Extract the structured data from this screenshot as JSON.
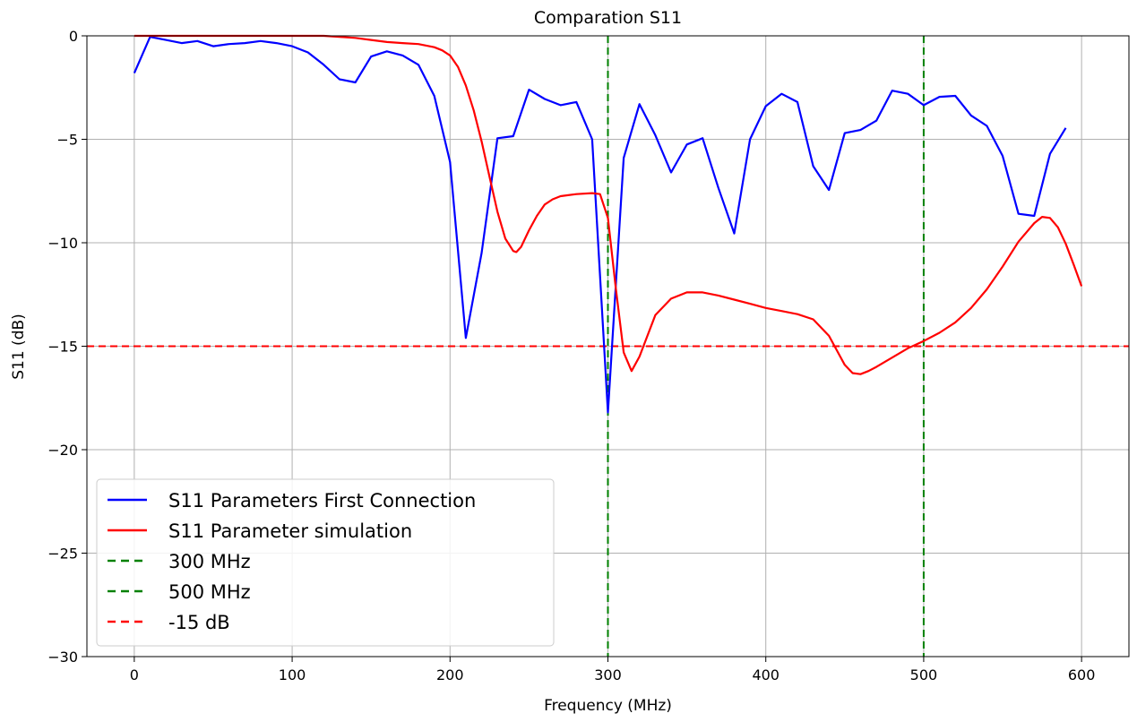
{
  "chart_data": {
    "type": "line",
    "title": "Comparation S11",
    "xlabel": "Frequency (MHz)",
    "ylabel": "S11 (dB)",
    "xlim": [
      -30,
      630
    ],
    "ylim": [
      -30,
      0
    ],
    "xticks": [
      0,
      100,
      200,
      300,
      400,
      500,
      600
    ],
    "yticks": [
      0,
      -5,
      -10,
      -15,
      -20,
      -25,
      -30
    ],
    "x_tick_labels": [
      "0",
      "100",
      "200",
      "300",
      "400",
      "500",
      "600"
    ],
    "y_tick_labels": [
      "0",
      "−5",
      "−10",
      "−15",
      "−20",
      "−25",
      "−30"
    ],
    "grid": true,
    "legend_position": "lower-left",
    "series": [
      {
        "name": "S11 Parameters First Connection",
        "color": "#0000ff",
        "style": "solid",
        "x": [
          0,
          10,
          20,
          30,
          40,
          50,
          60,
          70,
          80,
          90,
          100,
          110,
          120,
          130,
          140,
          150,
          160,
          170,
          180,
          190,
          200,
          210,
          220,
          230,
          240,
          250,
          260,
          270,
          280,
          290,
          300,
          310,
          320,
          330,
          340,
          350,
          360,
          370,
          380,
          390,
          400,
          410,
          420,
          430,
          440,
          450,
          460,
          470,
          480,
          490,
          500,
          510,
          520,
          530,
          540,
          550,
          560,
          570,
          580,
          590
        ],
        "y": [
          -1.8,
          -0.05,
          -0.2,
          -0.35,
          -0.25,
          -0.5,
          -0.4,
          -0.35,
          -0.25,
          -0.35,
          -0.5,
          -0.8,
          -1.4,
          -2.1,
          -2.25,
          -1.0,
          -0.75,
          -0.95,
          -1.4,
          -2.9,
          -6.1,
          -14.6,
          -10.5,
          -4.95,
          -4.85,
          -2.6,
          -3.05,
          -3.35,
          -3.2,
          -5.0,
          -18.2,
          -5.9,
          -3.3,
          -4.8,
          -6.6,
          -5.25,
          -4.95,
          -7.35,
          -9.55,
          -5.0,
          -3.4,
          -2.8,
          -3.2,
          -6.3,
          -7.45,
          -4.7,
          -4.55,
          -4.1,
          -2.65,
          -2.8,
          -3.35,
          -2.95,
          -2.9,
          -3.85,
          -4.35,
          -5.8,
          -8.6,
          -8.7,
          -5.7,
          -4.45
        ]
      },
      {
        "name": "S11 Parameter simulation",
        "color": "#ff0000",
        "style": "solid",
        "x": [
          0,
          50,
          100,
          120,
          130,
          140,
          150,
          160,
          170,
          180,
          190,
          195,
          200,
          205,
          210,
          215,
          220,
          225,
          230,
          235,
          240,
          242,
          245,
          250,
          255,
          260,
          265,
          270,
          280,
          290,
          295,
          300,
          305,
          310,
          315,
          320,
          330,
          340,
          350,
          360,
          370,
          380,
          390,
          400,
          410,
          420,
          430,
          440,
          445,
          450,
          455,
          460,
          465,
          470,
          480,
          490,
          500,
          510,
          520,
          530,
          540,
          550,
          560,
          570,
          575,
          580,
          585,
          590,
          595,
          600
        ],
        "y": [
          0,
          0,
          0,
          0,
          -0.05,
          -0.1,
          -0.2,
          -0.3,
          -0.35,
          -0.4,
          -0.55,
          -0.7,
          -0.95,
          -1.5,
          -2.4,
          -3.6,
          -5.1,
          -6.8,
          -8.5,
          -9.8,
          -10.4,
          -10.45,
          -10.2,
          -9.4,
          -8.7,
          -8.15,
          -7.9,
          -7.75,
          -7.65,
          -7.6,
          -7.65,
          -8.8,
          -12.2,
          -15.3,
          -16.2,
          -15.5,
          -13.5,
          -12.7,
          -12.4,
          -12.4,
          -12.55,
          -12.75,
          -12.95,
          -13.15,
          -13.3,
          -13.45,
          -13.7,
          -14.5,
          -15.2,
          -15.9,
          -16.3,
          -16.35,
          -16.2,
          -16.0,
          -15.55,
          -15.1,
          -14.75,
          -14.35,
          -13.85,
          -13.15,
          -12.25,
          -11.15,
          -9.95,
          -9.05,
          -8.75,
          -8.8,
          -9.25,
          -10.05,
          -11.05,
          -12.1
        ]
      }
    ],
    "reference_lines": [
      {
        "name": "300 MHz",
        "orientation": "vertical",
        "value": 300,
        "color": "#008000",
        "style": "dashed"
      },
      {
        "name": "500 MHz",
        "orientation": "vertical",
        "value": 500,
        "color": "#008000",
        "style": "dashed"
      },
      {
        "name": "-15 dB",
        "orientation": "horizontal",
        "value": -15,
        "color": "#ff0000",
        "style": "dashed"
      }
    ]
  }
}
